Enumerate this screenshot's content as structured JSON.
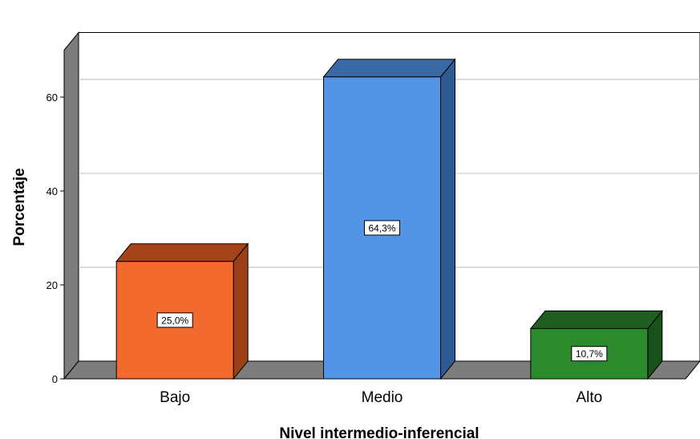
{
  "chart_data": {
    "type": "bar",
    "style": "3d",
    "categories": [
      "Bajo",
      "Medio",
      "Alto"
    ],
    "values": [
      25.0,
      64.3,
      10.7
    ],
    "data_labels": [
      "25,0%",
      "64,3%",
      "10,7%"
    ],
    "bar_colors": [
      "#f26a2e",
      "#5295e6",
      "#2b8a2b"
    ],
    "bar_side_colors": [
      "#9c3f17",
      "#2d5a92",
      "#1a511a"
    ],
    "bar_top_colors": [
      "#a5441b",
      "#3a6aa5",
      "#1f5e1f"
    ],
    "xlabel": "Nivel intermedio-inferencial",
    "ylabel": "Porcentaje",
    "yticks": [
      0,
      20,
      40,
      60
    ],
    "ylim": [
      0,
      70
    ],
    "grid": true,
    "legend": false
  }
}
